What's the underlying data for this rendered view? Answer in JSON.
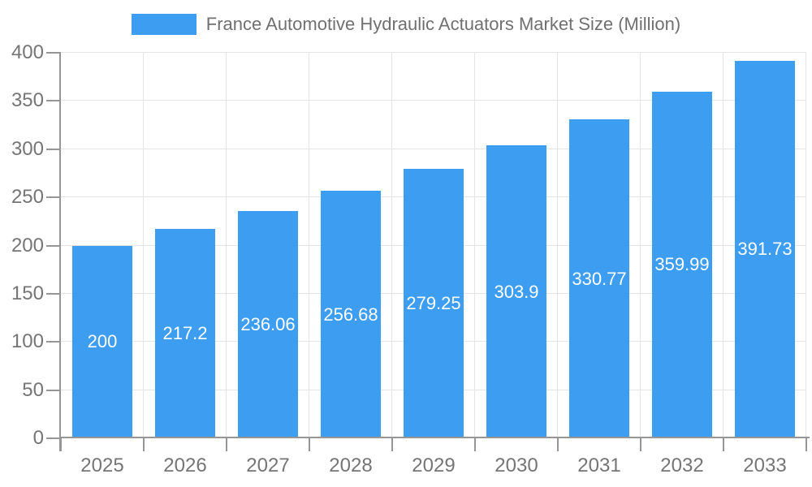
{
  "chart_data": {
    "type": "bar",
    "title": "France Automotive Hydraulic Actuators Market Size (Million)",
    "legend_label": "France Automotive Hydraulic Actuators Market Size (Million)",
    "legend_position": "top-center",
    "categories": [
      "2025",
      "2026",
      "2027",
      "2028",
      "2029",
      "2030",
      "2031",
      "2032",
      "2033"
    ],
    "series": [
      {
        "name": "France Automotive Hydraulic Actuators Market Size (Million)",
        "values": [
          200,
          217.2,
          236.06,
          256.68,
          279.25,
          303.9,
          330.77,
          359.99,
          391.73
        ],
        "value_labels": [
          "200",
          "217.2",
          "236.06",
          "256.68",
          "279.25",
          "303.9",
          "330.77",
          "359.99",
          "391.73"
        ]
      }
    ],
    "xlabel": "",
    "ylabel": "",
    "ylim": [
      0,
      400
    ],
    "yticks": [
      0,
      50,
      100,
      150,
      200,
      250,
      300,
      350,
      400
    ],
    "grid": "horizontal and vertical category separators",
    "value_label_position": "inside-center",
    "colors": {
      "bar": "#3d9df0",
      "grid": "#e5e5e5",
      "axis": "#969696",
      "tick_label": "#757575",
      "value_label": "#ffffff",
      "background": "#ffffff"
    }
  }
}
